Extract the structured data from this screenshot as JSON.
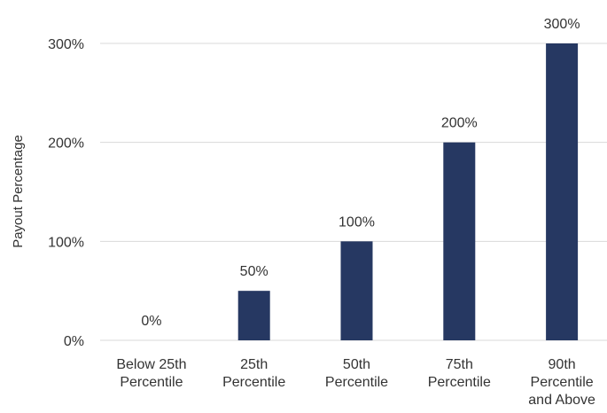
{
  "chart_data": {
    "type": "bar",
    "categories": [
      [
        "Below 25th",
        "Percentile"
      ],
      [
        "25th",
        "Percentile"
      ],
      [
        "50th",
        "Percentile"
      ],
      [
        "75th",
        "Percentile"
      ],
      [
        "90th",
        "Percentile",
        "and Above"
      ]
    ],
    "values": [
      0,
      50,
      100,
      200,
      300
    ],
    "data_labels": [
      "0%",
      "50%",
      "100%",
      "200%",
      "300%"
    ],
    "title": "",
    "xlabel": "",
    "ylabel": "Payout Percentage",
    "ylim": [
      0,
      300
    ],
    "yticks": [
      0,
      100,
      200,
      300
    ],
    "ytick_labels": [
      "0%",
      "100%",
      "200%",
      "300%"
    ],
    "grid": "horizontal",
    "legend": "none",
    "colors": {
      "bar": "#263862",
      "grid": "#d9d9d9",
      "text": "#333333"
    }
  }
}
